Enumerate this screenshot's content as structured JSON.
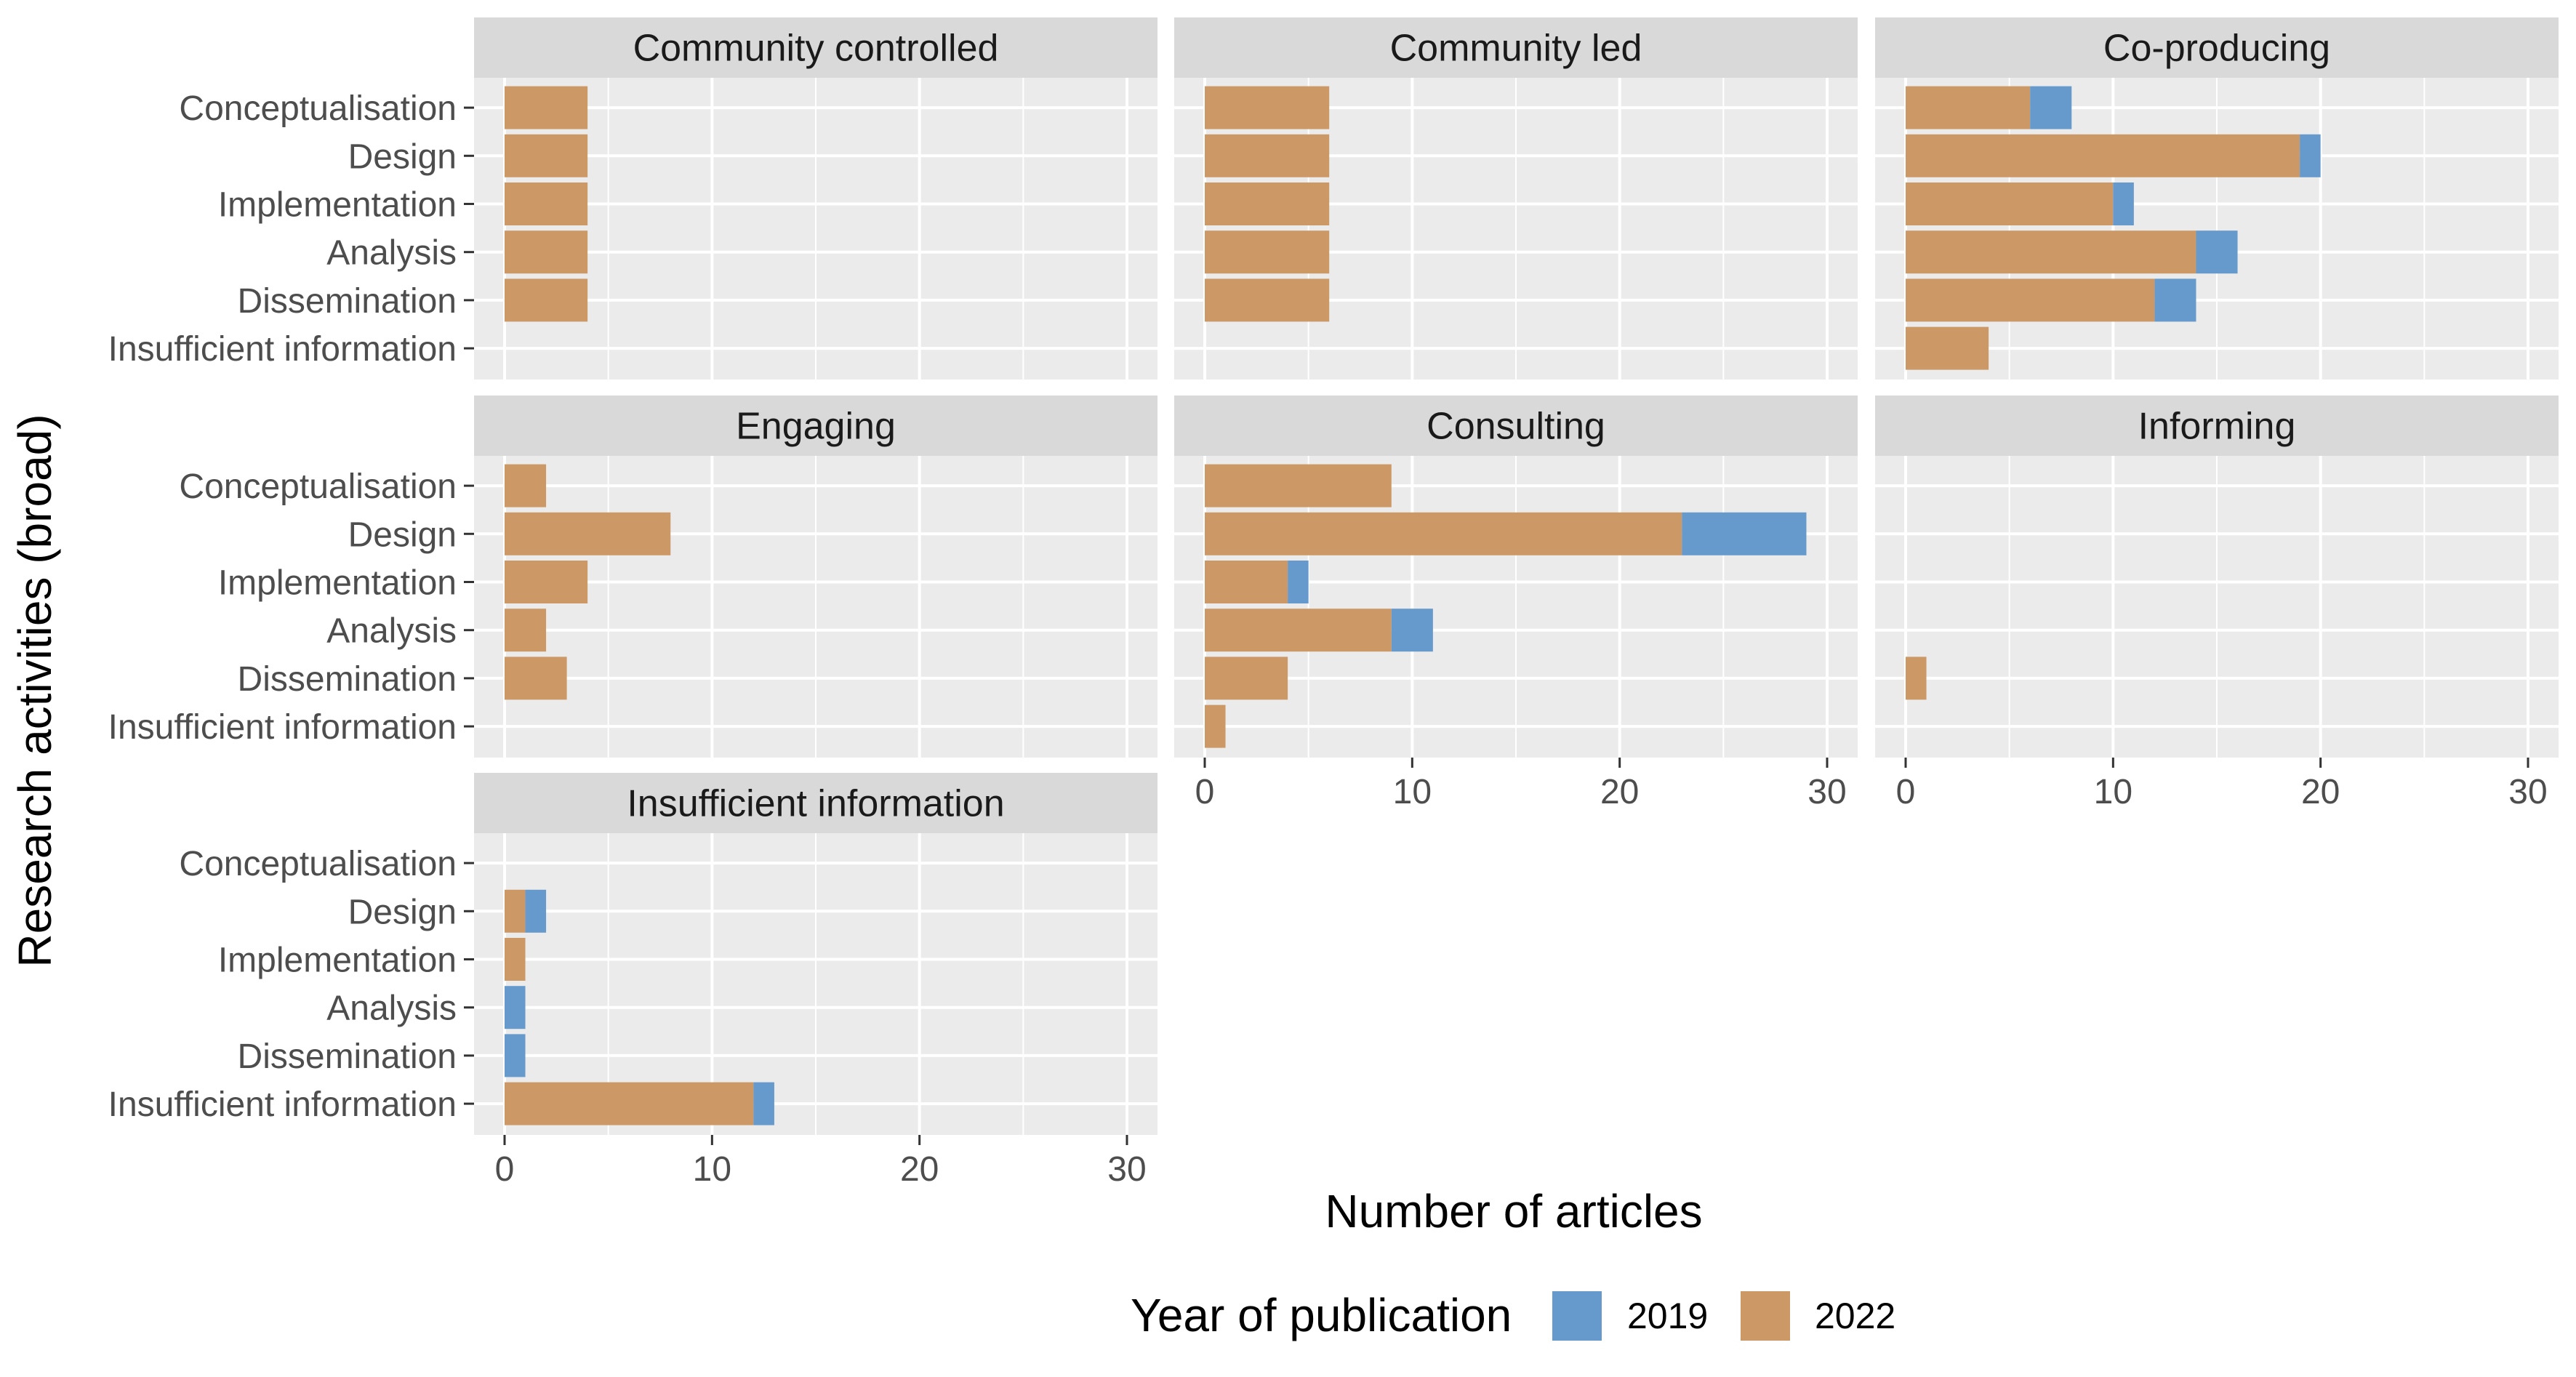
{
  "chart_data": {
    "type": "bar",
    "orientation": "horizontal",
    "stacked": true,
    "xlabel": "Number of articles",
    "ylabel": "Research activities (broad)",
    "xlim": [
      0,
      30
    ],
    "xticks": [
      0,
      10,
      20,
      30
    ],
    "grid": true,
    "categories": [
      "Conceptualisation",
      "Design",
      "Implementation",
      "Analysis",
      "Dissemination",
      "Insufficient information"
    ],
    "legend": {
      "title": "Year of publication",
      "position": "bottom",
      "entries": [
        {
          "name": "2019",
          "color": "#6699CC"
        },
        {
          "name": "2022",
          "color": "#CC9966"
        }
      ]
    },
    "facets": [
      {
        "title": "Community controlled",
        "series": [
          {
            "name": "2022",
            "values": [
              4,
              4,
              4,
              4,
              4,
              0
            ]
          },
          {
            "name": "2019",
            "values": [
              0,
              0,
              0,
              0,
              0,
              0
            ]
          }
        ]
      },
      {
        "title": "Community led",
        "series": [
          {
            "name": "2022",
            "values": [
              6,
              6,
              6,
              6,
              6,
              0
            ]
          },
          {
            "name": "2019",
            "values": [
              0,
              0,
              0,
              0,
              0,
              0
            ]
          }
        ]
      },
      {
        "title": "Co-producing",
        "series": [
          {
            "name": "2022",
            "values": [
              6,
              19,
              10,
              14,
              12,
              4
            ]
          },
          {
            "name": "2019",
            "values": [
              2,
              1,
              1,
              2,
              2,
              0
            ]
          }
        ]
      },
      {
        "title": "Engaging",
        "series": [
          {
            "name": "2022",
            "values": [
              2,
              8,
              4,
              2,
              3,
              0
            ]
          },
          {
            "name": "2019",
            "values": [
              0,
              0,
              0,
              0,
              0,
              0
            ]
          }
        ]
      },
      {
        "title": "Consulting",
        "series": [
          {
            "name": "2022",
            "values": [
              9,
              23,
              4,
              9,
              4,
              1
            ]
          },
          {
            "name": "2019",
            "values": [
              0,
              6,
              1,
              2,
              0,
              0
            ]
          }
        ]
      },
      {
        "title": "Informing",
        "series": [
          {
            "name": "2022",
            "values": [
              0,
              0,
              0,
              0,
              1,
              0
            ]
          },
          {
            "name": "2019",
            "values": [
              0,
              0,
              0,
              0,
              0,
              0
            ]
          }
        ]
      },
      {
        "title": "Insufficient information",
        "series": [
          {
            "name": "2022",
            "values": [
              0,
              1,
              1,
              0,
              0,
              12
            ]
          },
          {
            "name": "2019",
            "values": [
              0,
              1,
              0,
              1,
              1,
              1
            ]
          }
        ]
      }
    ]
  }
}
